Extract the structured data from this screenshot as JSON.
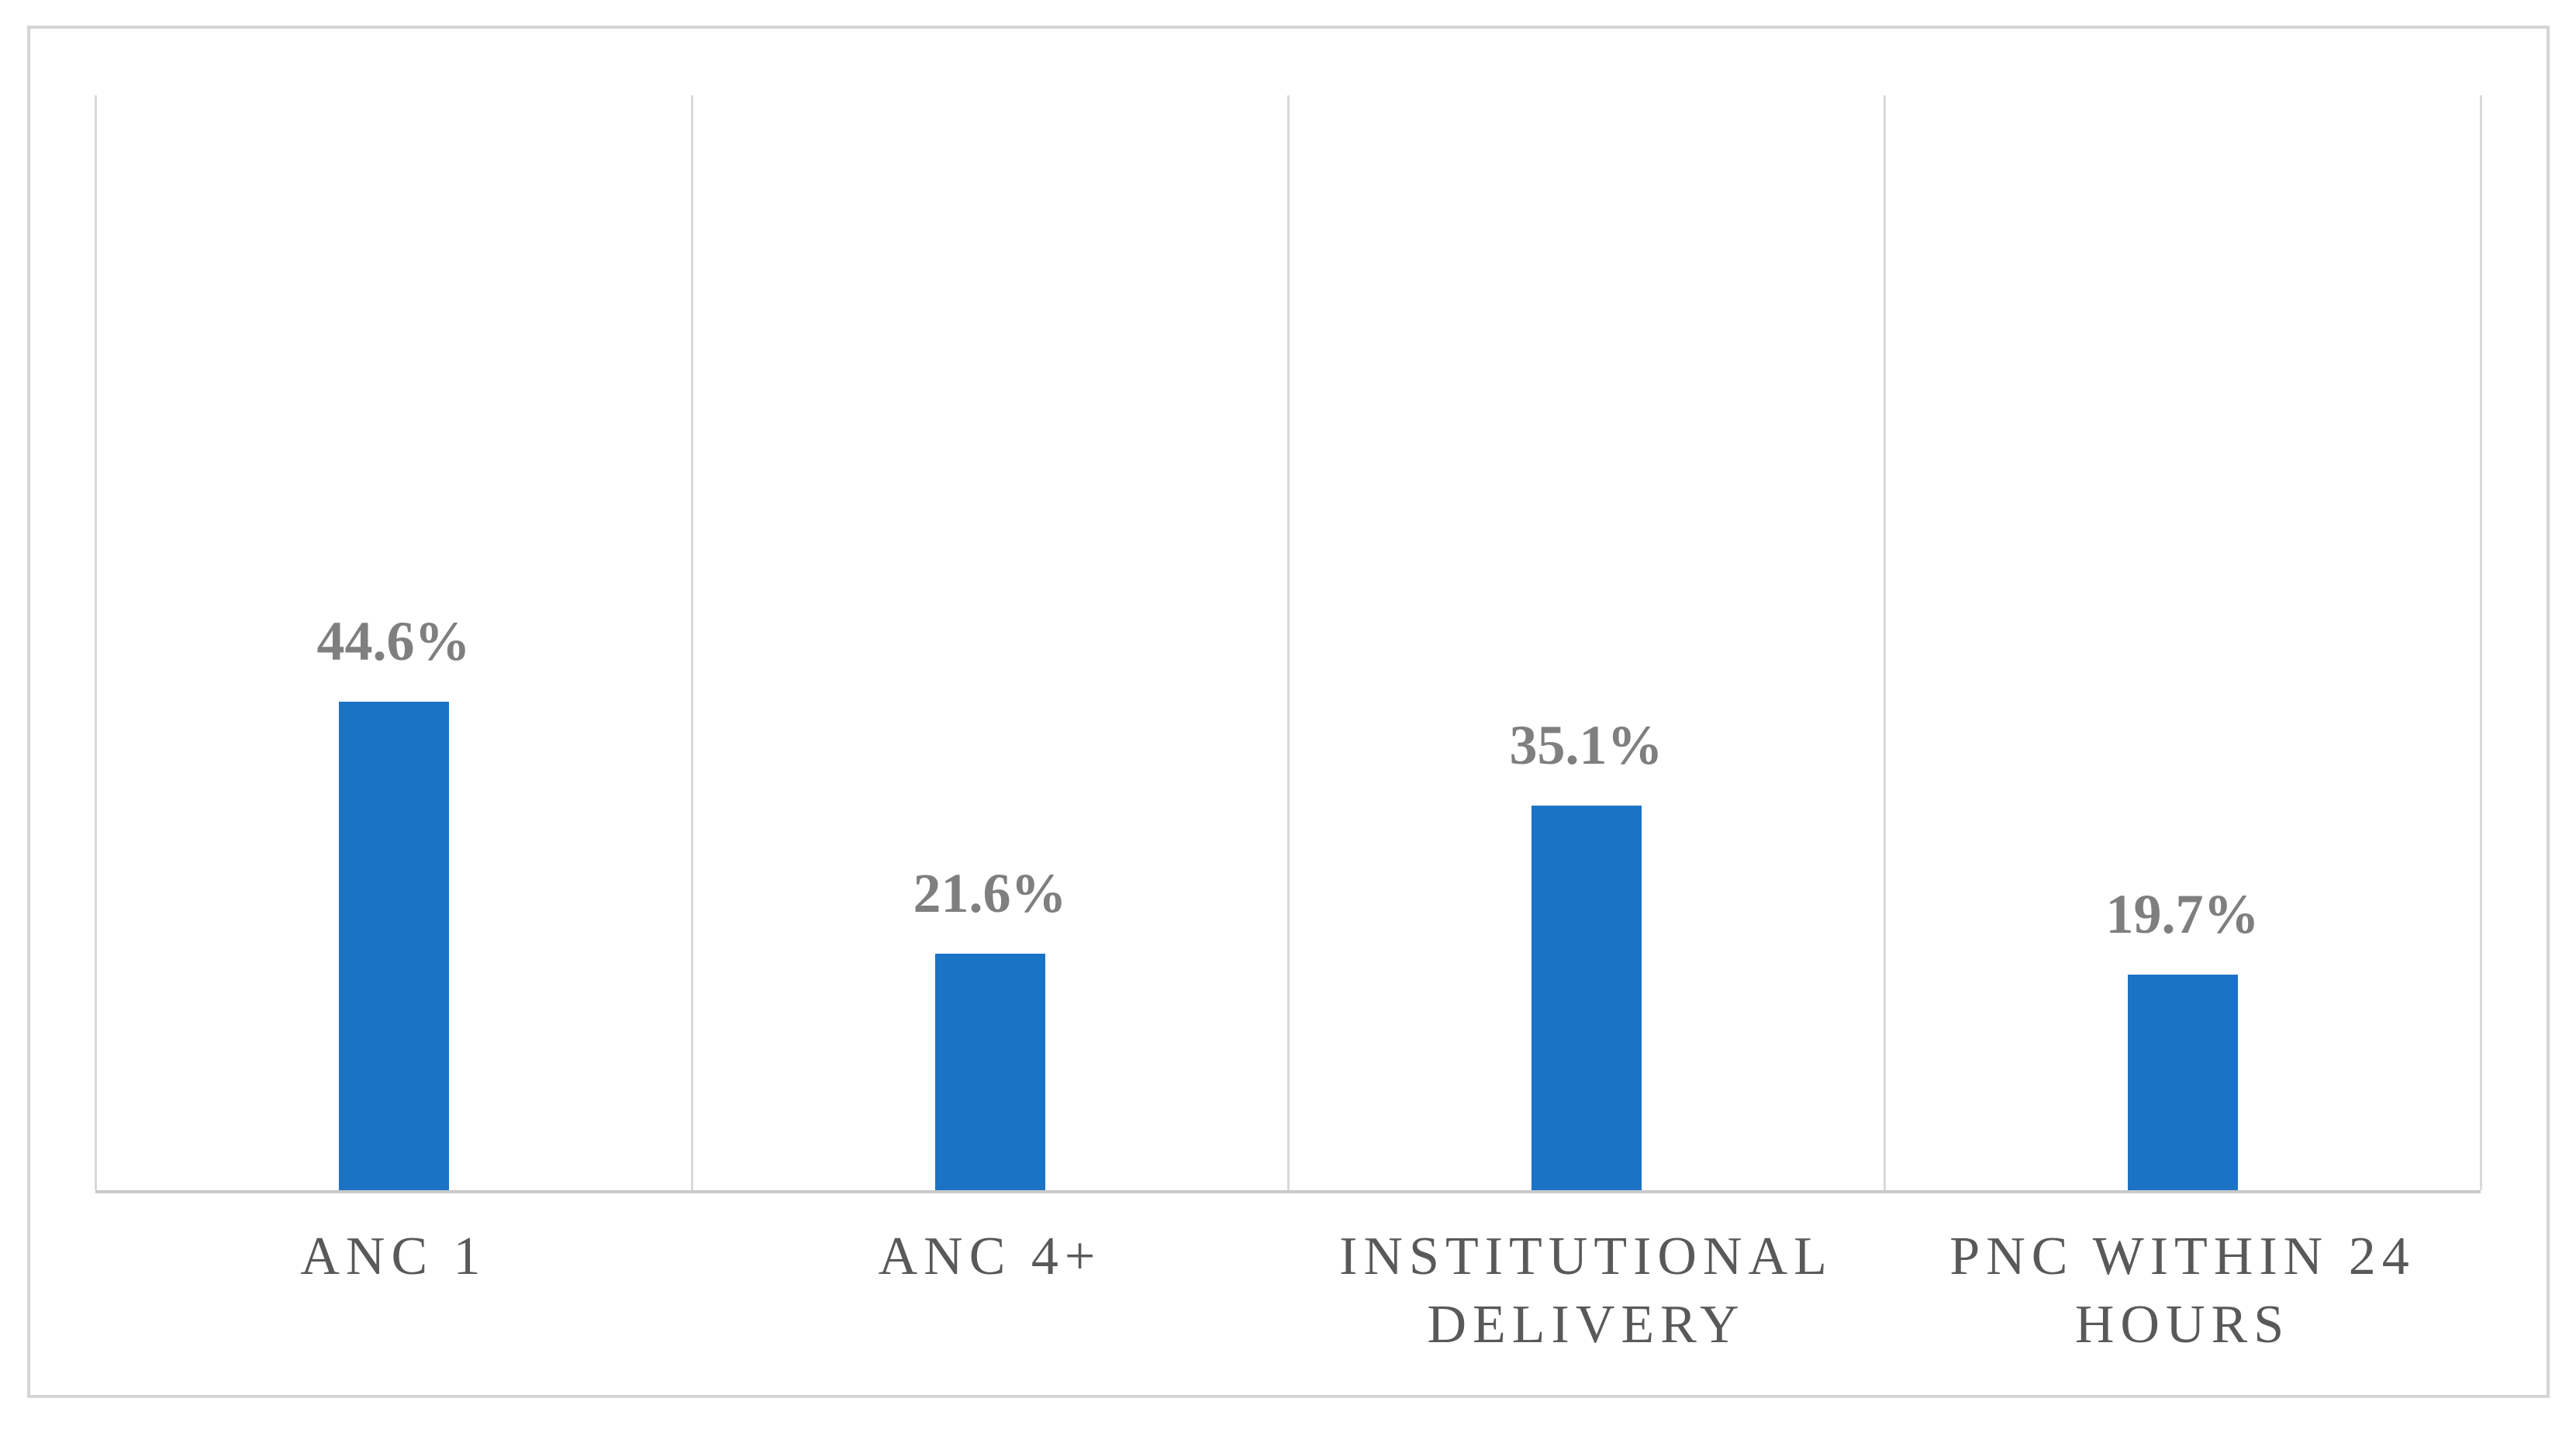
{
  "figure": {
    "background": "#ffffff",
    "frame_border_color": "#d5d5d5"
  },
  "chart_data": {
    "type": "bar",
    "title": "",
    "xlabel": "",
    "ylabel": "",
    "categories": [
      "ANC 1",
      "ANC 4+",
      "INSTITUTIONAL DELIVERY",
      "PNC WITHIN 24 HOURS"
    ],
    "values": [
      44.6,
      21.6,
      35.1,
      19.7
    ],
    "data_labels": [
      "44.6%",
      "21.6%",
      "35.1%",
      "19.7%"
    ],
    "ylim": [
      0,
      100
    ],
    "y_axis_ticks_visible": false,
    "grid": "vertical-category-separators",
    "legend_position": "none",
    "bar_color": "#1b73c6",
    "gridline_color": "#d9d9d9",
    "axis_line_color": "#c9c9c9",
    "data_label_color": "#7f7f7f",
    "category_label_color": "#595959"
  }
}
